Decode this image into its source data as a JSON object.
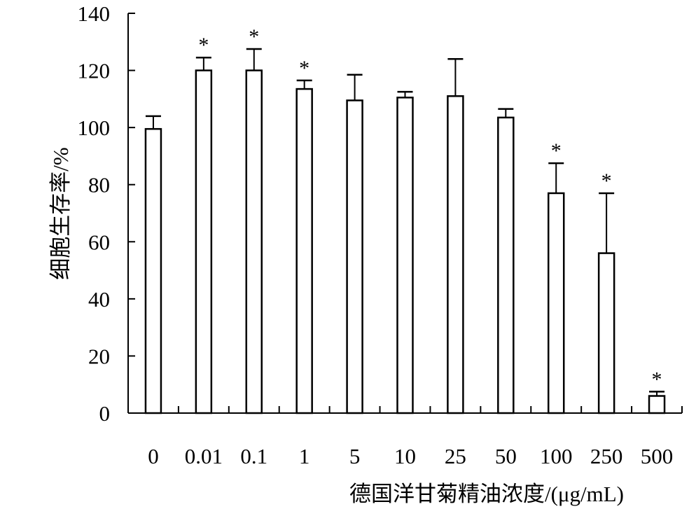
{
  "chart_data": {
    "type": "bar",
    "title": "",
    "xlabel": "德国洋甘菊精油浓度/(μg/mL)",
    "ylabel": "细胞生存率/%",
    "categories": [
      "0",
      "0.01",
      "0.1",
      "1",
      "5",
      "10",
      "25",
      "50",
      "100",
      "250",
      "500"
    ],
    "values": [
      99.5,
      120,
      120,
      113.5,
      109.5,
      110.5,
      111,
      103.5,
      77,
      56,
      6
    ],
    "errors": [
      4.5,
      4.5,
      7.5,
      3,
      9,
      2,
      13,
      3,
      10.5,
      21,
      1.5
    ],
    "significance": [
      "",
      "*",
      "*",
      "*",
      "",
      "",
      "",
      "",
      "*",
      "*",
      "*"
    ],
    "ylim": [
      0,
      140
    ],
    "yticks": [
      0,
      20,
      40,
      60,
      80,
      100,
      120,
      140
    ],
    "grid": false,
    "bar_fill": "#ffffff",
    "bar_stroke": "#000000"
  }
}
